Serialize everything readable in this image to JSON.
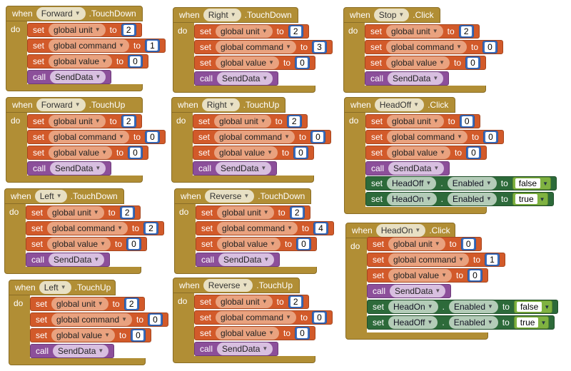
{
  "kw": {
    "when": "when",
    "do": "do",
    "set": "set",
    "to": "to",
    "call": "call",
    "dot": "."
  },
  "vars": {
    "unit": "global unit",
    "command": "global command",
    "value": "global value"
  },
  "proc": "SendData",
  "events": [
    {
      "component": "Forward",
      "event": ".TouchDown",
      "vals": [
        "2",
        "1",
        "0"
      ]
    },
    {
      "component": "Forward",
      "event": ".TouchUp",
      "vals": [
        "2",
        "0",
        "0"
      ]
    },
    {
      "component": "Left",
      "event": ".TouchDown",
      "vals": [
        "2",
        "2",
        "0"
      ]
    },
    {
      "component": "Left",
      "event": ".TouchUp",
      "vals": [
        "2",
        "0",
        "0"
      ]
    },
    {
      "component": "Right",
      "event": ".TouchDown",
      "vals": [
        "2",
        "3",
        "0"
      ]
    },
    {
      "component": "Right",
      "event": ".TouchUp",
      "vals": [
        "2",
        "0",
        "0"
      ]
    },
    {
      "component": "Reverse",
      "event": ".TouchDown",
      "vals": [
        "2",
        "4",
        "0"
      ]
    },
    {
      "component": "Reverse",
      "event": ".TouchUp",
      "vals": [
        "2",
        "0",
        "0"
      ]
    },
    {
      "component": "Stop",
      "event": ".Click",
      "vals": [
        "2",
        "0",
        "0"
      ]
    },
    {
      "component": "HeadOff",
      "event": ".Click",
      "vals": [
        "0",
        "0",
        "0"
      ],
      "props": [
        {
          "comp": "HeadOff",
          "prop": "Enabled",
          "val": "false"
        },
        {
          "comp": "HeadOn",
          "prop": "Enabled",
          "val": "true"
        }
      ]
    },
    {
      "component": "HeadOn",
      "event": ".Click",
      "vals": [
        "0",
        "1",
        "0"
      ],
      "props": [
        {
          "comp": "HeadOn",
          "prop": "Enabled",
          "val": "false"
        },
        {
          "comp": "HeadOff",
          "prop": "Enabled",
          "val": "true"
        }
      ]
    }
  ]
}
